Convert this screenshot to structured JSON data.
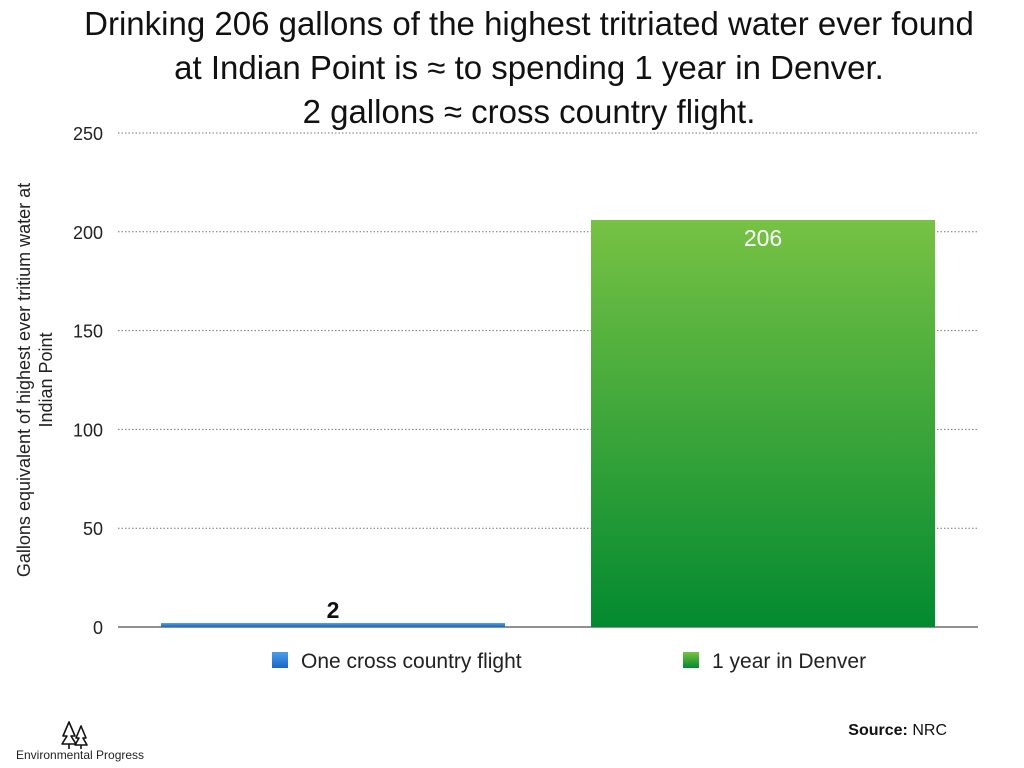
{
  "title_lines": [
    "Drinking 206 gallons of the highest tritriated water ever found",
    "at Indian Point is ≈ to spending 1 year in Denver.",
    "2 gallons ≈ cross country flight."
  ],
  "chart_data": {
    "type": "bar",
    "categories": [
      "One cross country flight",
      "1 year in Denver"
    ],
    "values": [
      2,
      206
    ],
    "data_labels": [
      "2",
      "206"
    ],
    "ylabel": "Gallons equivalent of highest ever tritium water at Indian Point",
    "ylabel_lines": [
      "Gallons equivalent of highest ever tritium water at",
      "Indian Point"
    ],
    "ylim": [
      0,
      250
    ],
    "yticks": [
      0,
      50,
      100,
      150,
      200,
      250
    ],
    "grid": true,
    "grid_style": "dotted",
    "legend_position": "bottom",
    "legend": [
      "One cross country flight",
      "1 year in Denver"
    ],
    "colors": {
      "One cross country flight": {
        "top": "#4a9ee8",
        "bottom": "#1a66c4"
      },
      "1 year in Denver": {
        "top": "#77c244",
        "bottom": "#038a30"
      }
    }
  },
  "footer": {
    "logo_text": "Environmental Progress",
    "logo_icon": "trees-icon",
    "source_label": "Source:",
    "source_value": "NRC"
  }
}
